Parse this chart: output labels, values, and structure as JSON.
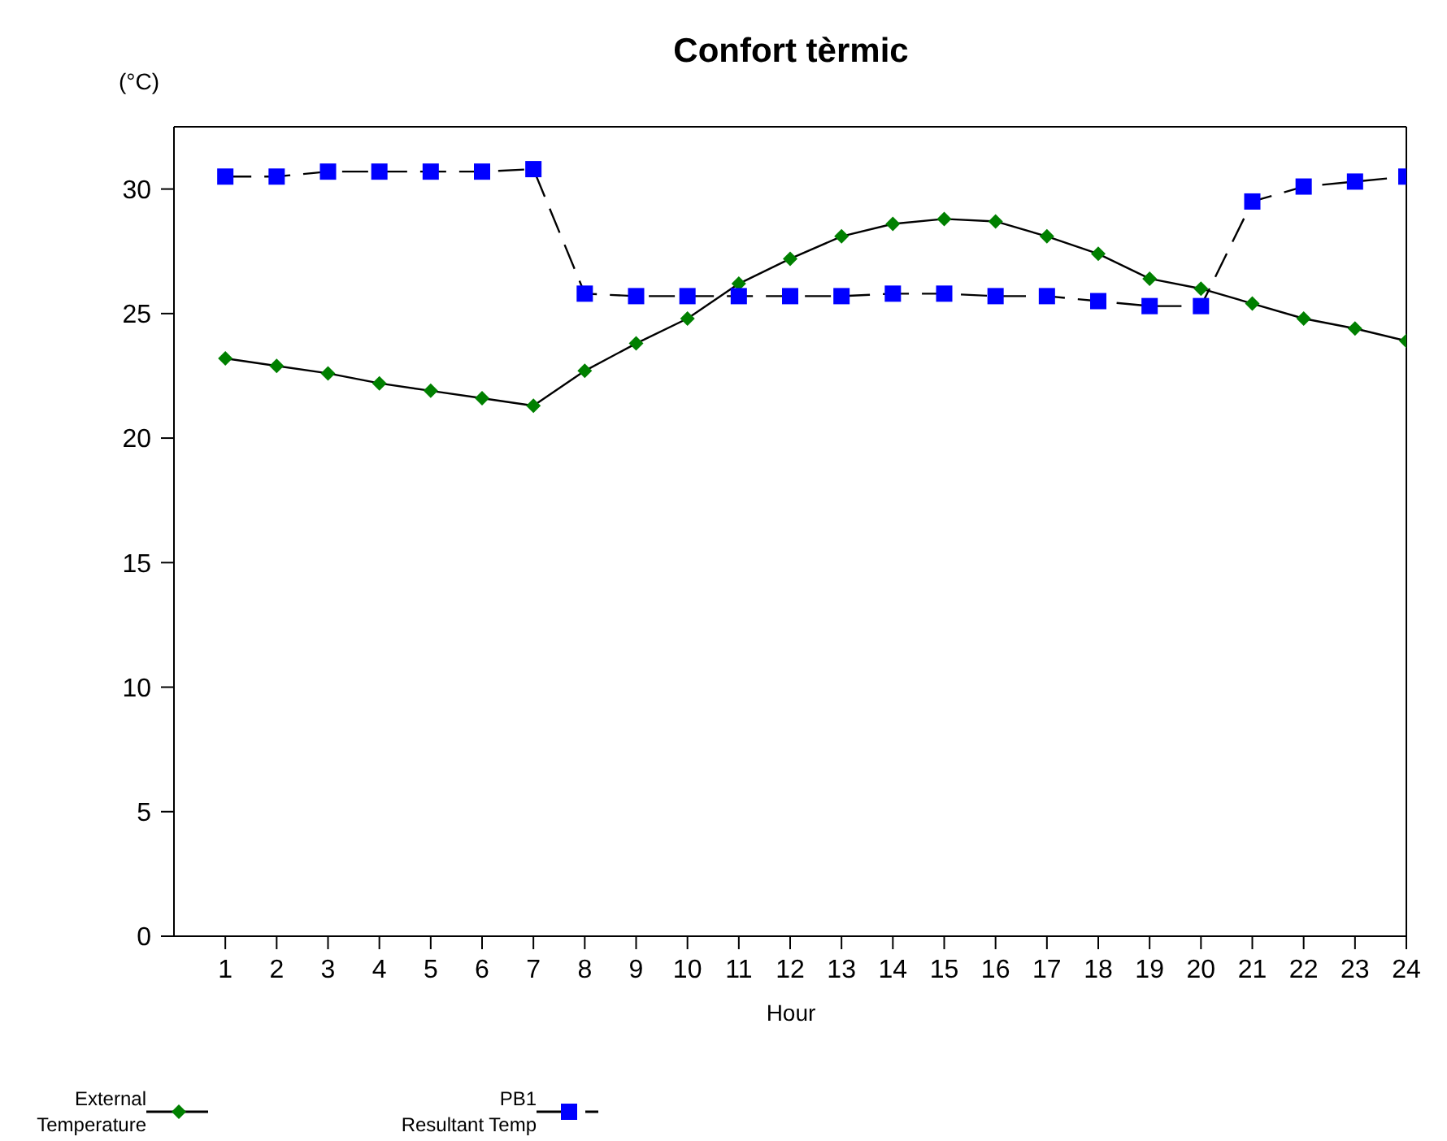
{
  "chart_data": {
    "type": "line",
    "title": "Confort tèrmic",
    "xlabel": "Hour",
    "ylabel": "(°C)",
    "x": [
      1,
      2,
      3,
      4,
      5,
      6,
      7,
      8,
      9,
      10,
      11,
      12,
      13,
      14,
      15,
      16,
      17,
      18,
      19,
      20,
      21,
      22,
      23,
      24
    ],
    "xlim": [
      0,
      24
    ],
    "xticks": [
      1,
      2,
      3,
      4,
      5,
      6,
      7,
      8,
      9,
      10,
      11,
      12,
      13,
      14,
      15,
      16,
      17,
      18,
      19,
      20,
      21,
      22,
      23,
      24
    ],
    "ylim": [
      0,
      32.5
    ],
    "yticks": [
      0,
      5,
      10,
      15,
      20,
      25,
      30
    ],
    "grid": false,
    "legend": "bottom left",
    "series": [
      {
        "name": "External\nTemperature",
        "color": "#008000",
        "marker": "diamond",
        "line_style": "solid",
        "values": [
          23.2,
          22.9,
          22.6,
          22.2,
          21.9,
          21.6,
          21.3,
          22.7,
          23.8,
          24.8,
          26.2,
          27.2,
          28.1,
          28.6,
          28.8,
          28.7,
          28.1,
          27.4,
          26.4,
          26.0,
          25.4,
          24.8,
          24.4,
          23.9
        ]
      },
      {
        "name": "PB1\nResultant Temp",
        "color": "#0000ff",
        "marker": "square",
        "line_style": "dashed",
        "values": [
          30.5,
          30.5,
          30.7,
          30.7,
          30.7,
          30.7,
          30.8,
          25.8,
          25.7,
          25.7,
          25.7,
          25.7,
          25.7,
          25.8,
          25.8,
          25.7,
          25.7,
          25.5,
          25.3,
          25.3,
          29.5,
          30.1,
          30.3,
          30.5
        ]
      }
    ]
  }
}
